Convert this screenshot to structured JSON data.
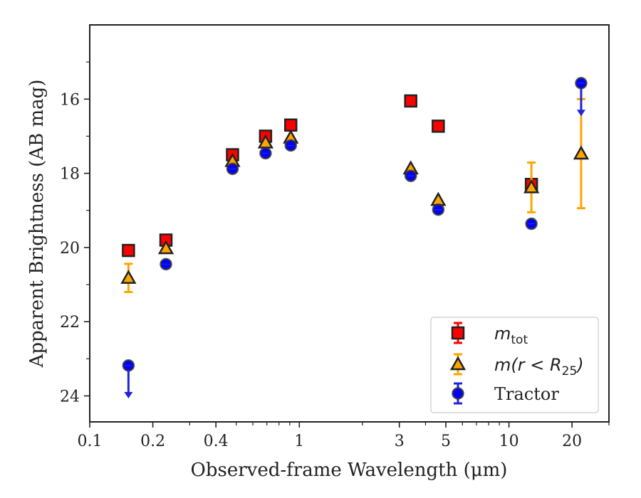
{
  "chart_data": {
    "type": "scatter",
    "xscale": "log",
    "yaxis_inverted": true,
    "xlim": [
      0.1,
      30
    ],
    "ylim": [
      24.7,
      14.0
    ],
    "xlabel": "Observed-frame Wavelength (μm)",
    "ylabel": "Apparent Brightness (AB mag)",
    "x_ticks": [
      {
        "value": 0.1,
        "label": "0.1"
      },
      {
        "value": 0.2,
        "label": "0.2"
      },
      {
        "value": 0.4,
        "label": "0.4"
      },
      {
        "value": 1,
        "label": "1"
      },
      {
        "value": 3,
        "label": "3"
      },
      {
        "value": 5,
        "label": "5"
      },
      {
        "value": 10,
        "label": "10"
      },
      {
        "value": 20,
        "label": "20"
      }
    ],
    "x_minor_ticks": [
      0.3,
      0.5,
      0.6,
      0.7,
      0.8,
      0.9,
      2,
      4,
      6,
      7,
      8,
      9,
      30
    ],
    "y_ticks": [
      {
        "value": 16,
        "label": "16"
      },
      {
        "value": 18,
        "label": "18"
      },
      {
        "value": 20,
        "label": "20"
      },
      {
        "value": 22,
        "label": "22"
      },
      {
        "value": 24,
        "label": "24"
      }
    ],
    "y_minor_ticks": [
      15,
      17,
      19,
      21,
      23
    ],
    "legend_position": "lower-right",
    "series": [
      {
        "name": "m_tot",
        "legend_main": "m",
        "legend_sub": "tot",
        "marker": "square",
        "color": "#ff0000",
        "error_color": "#ff0000",
        "points": [
          {
            "x": 0.153,
            "y": 20.08
          },
          {
            "x": 0.231,
            "y": 19.8
          },
          {
            "x": 0.48,
            "y": 17.5
          },
          {
            "x": 0.69,
            "y": 17.0
          },
          {
            "x": 0.91,
            "y": 16.7
          },
          {
            "x": 3.4,
            "y": 16.05
          },
          {
            "x": 4.6,
            "y": 16.73
          },
          {
            "x": 12.8,
            "y": 18.3
          }
        ]
      },
      {
        "name": "m(r<R25)",
        "legend_main": "m(r < R",
        "legend_sub": "25",
        "legend_tail": ")",
        "marker": "triangle",
        "color": "#ffa500",
        "error_color": "#ffa500",
        "points": [
          {
            "x": 0.153,
            "y": 20.82,
            "err_low": 0.38,
            "err_high": 0.38
          },
          {
            "x": 0.231,
            "y": 20.02
          },
          {
            "x": 0.48,
            "y": 17.67
          },
          {
            "x": 0.69,
            "y": 17.17
          },
          {
            "x": 0.91,
            "y": 17.04
          },
          {
            "x": 3.4,
            "y": 17.87
          },
          {
            "x": 4.6,
            "y": 18.72
          },
          {
            "x": 12.8,
            "y": 18.38,
            "err_low": 0.67,
            "err_high": 0.67
          },
          {
            "x": 22.1,
            "y": 17.47,
            "err_low": 1.47,
            "err_high": 1.47
          }
        ]
      },
      {
        "name": "Tractor",
        "legend_main": "Tractor",
        "marker": "circle",
        "color": "#0000ff",
        "error_color": "#2222dd",
        "points": [
          {
            "x": 0.153,
            "y": 23.18,
            "upper_limit": true
          },
          {
            "x": 0.231,
            "y": 20.45
          },
          {
            "x": 0.48,
            "y": 17.88
          },
          {
            "x": 0.69,
            "y": 17.46
          },
          {
            "x": 0.91,
            "y": 17.25
          },
          {
            "x": 3.4,
            "y": 18.07
          },
          {
            "x": 4.6,
            "y": 18.98
          },
          {
            "x": 12.8,
            "y": 19.36
          },
          {
            "x": 22.1,
            "y": 15.57,
            "upper_limit": true
          }
        ]
      }
    ]
  }
}
